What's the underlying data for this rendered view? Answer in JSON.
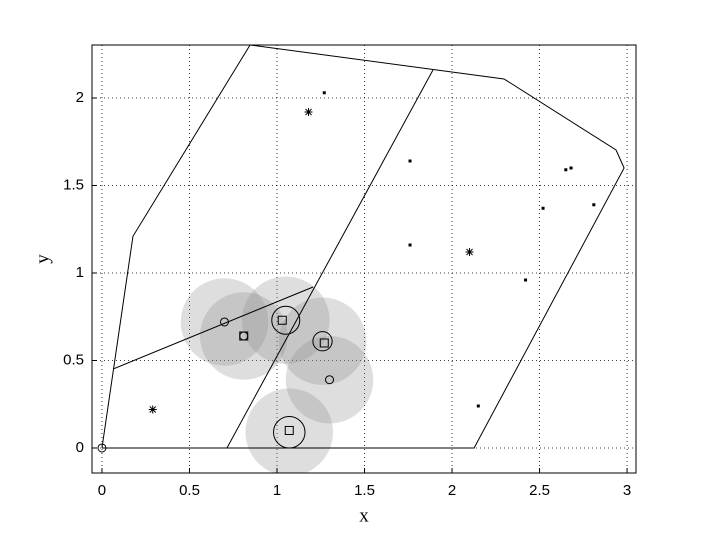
{
  "chart_data": {
    "type": "scatter",
    "x_label": "x",
    "y_label": "y",
    "xlim": [
      -0.057,
      3.051
    ],
    "ylim": [
      -0.143,
      2.303
    ],
    "xticks": [
      0,
      0.5,
      1,
      1.5,
      2,
      2.5,
      3
    ],
    "yticks": [
      0,
      0.5,
      1,
      1.5,
      2
    ],
    "grid": true,
    "series": [
      {
        "style": "disk",
        "color": "#888888",
        "x": [
          0.7,
          0.81,
          1.05,
          1.26,
          1.3,
          1.07
        ],
        "values": [
          0.72,
          0.64,
          0.73,
          0.61,
          0.39,
          0.09
        ],
        "sizes": [
          0.25,
          0.25,
          0.25,
          0.25,
          0.25,
          0.25
        ]
      },
      {
        "style": "line",
        "color": "#000000",
        "x": [
          0,
          0.177,
          0.846,
          2.297,
          2.937,
          2.983,
          2.126,
          0
        ],
        "values": [
          0,
          1.21,
          2.303,
          2.109,
          1.703,
          1.6,
          0,
          0
        ]
      },
      {
        "style": "line",
        "color": "#000000",
        "x": [
          0.063,
          1.206
        ],
        "values": [
          0.451,
          0.92
        ]
      },
      {
        "style": "line",
        "color": "#000000",
        "x": [
          0.714,
          1.891
        ],
        "values": [
          0,
          2.16
        ]
      },
      {
        "style": "ring",
        "color": "#000000",
        "x": [
          1.05,
          1.26,
          1.07
        ],
        "values": [
          0.73,
          0.61,
          0.09
        ],
        "sizes": [
          0.08,
          0.055,
          0.09
        ]
      },
      {
        "style": "circle",
        "color": "#000000",
        "x": [
          0,
          0.7,
          0.81,
          1.3
        ],
        "values": [
          0,
          0.72,
          0.64,
          0.39
        ]
      },
      {
        "style": "square",
        "color": "#000000",
        "x": [
          0.81,
          1.03,
          1.27,
          1.07
        ],
        "values": [
          0.64,
          0.73,
          0.6,
          0.1
        ]
      },
      {
        "style": "star",
        "color": "#000000",
        "x": [
          1.18,
          2.1,
          0.29
        ],
        "values": [
          1.92,
          1.12,
          0.22
        ]
      },
      {
        "style": "dot",
        "color": "#000000",
        "x": [
          1.27,
          1.76,
          1.76,
          2.52,
          2.65,
          2.68,
          2.81,
          2.42,
          2.15
        ],
        "values": [
          2.03,
          1.64,
          1.16,
          1.37,
          1.59,
          1.6,
          1.39,
          0.96,
          0.24
        ]
      }
    ]
  }
}
